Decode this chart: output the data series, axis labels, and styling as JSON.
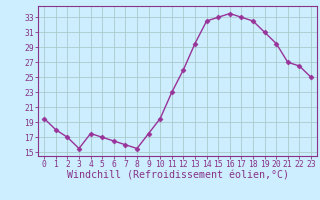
{
  "x": [
    0,
    1,
    2,
    3,
    4,
    5,
    6,
    7,
    8,
    9,
    10,
    11,
    12,
    13,
    14,
    15,
    16,
    17,
    18,
    19,
    20,
    21,
    22,
    23
  ],
  "y": [
    19.5,
    18.0,
    17.0,
    15.5,
    17.5,
    17.0,
    16.5,
    16.0,
    15.5,
    17.5,
    19.5,
    23.0,
    26.0,
    29.5,
    32.5,
    33.0,
    33.5,
    33.0,
    32.5,
    31.0,
    29.5,
    27.0,
    26.5,
    25.0
  ],
  "line_color": "#993399",
  "marker": "D",
  "marker_size": 2.5,
  "bg_color": "#cceeff",
  "grid_color": "#aacccc",
  "xlabel": "Windchill (Refroidissement éolien,°C)",
  "xlim": [
    -0.5,
    23.5
  ],
  "ylim": [
    14.5,
    34.5
  ],
  "yticks": [
    15,
    17,
    19,
    21,
    23,
    25,
    27,
    29,
    31,
    33
  ],
  "xticks": [
    0,
    1,
    2,
    3,
    4,
    5,
    6,
    7,
    8,
    9,
    10,
    11,
    12,
    13,
    14,
    15,
    16,
    17,
    18,
    19,
    20,
    21,
    22,
    23
  ],
  "font_color": "#883388",
  "axis_color": "#883388",
  "tick_label_fontsize": 5.8,
  "xlabel_fontsize": 7.2,
  "linewidth": 1.0
}
